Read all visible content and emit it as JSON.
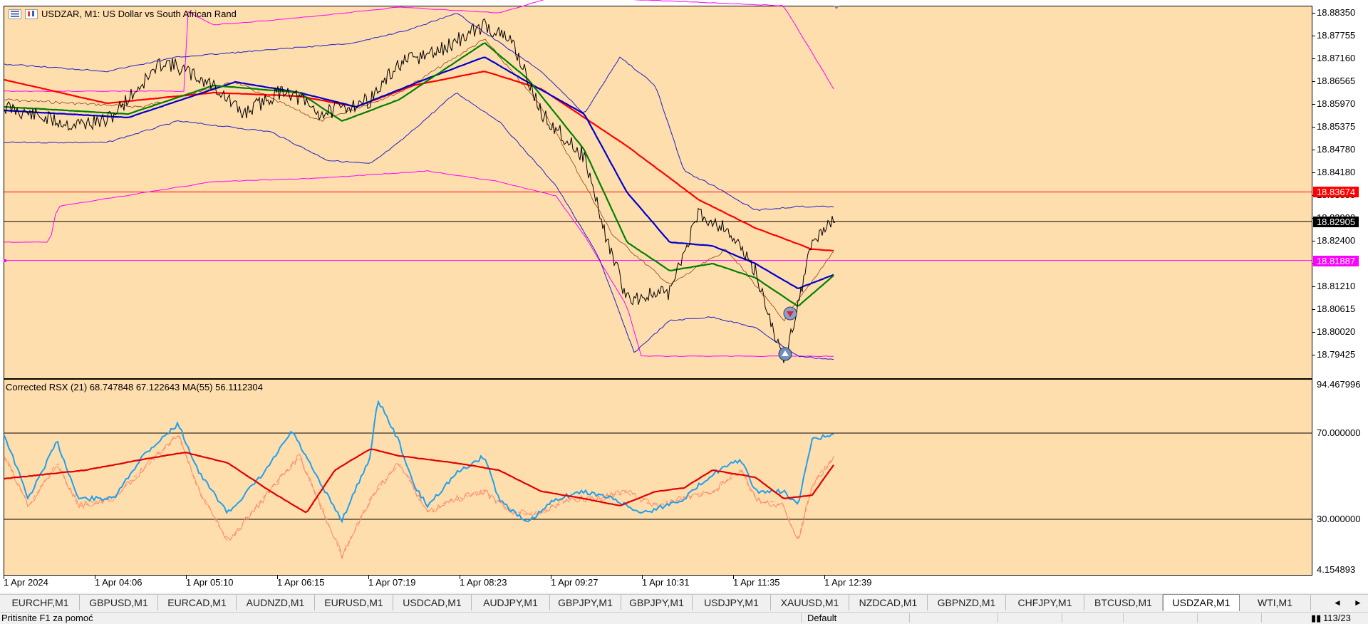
{
  "chart": {
    "symbol_title": "USDZAR, M1:  US Dollar vs South African Rand",
    "indicator_title": "Corrected RSX (21) 68.747848 67.122643 MA(55) 56.1112304"
  },
  "price_axis": {
    "labels": [
      "18.88350",
      "18.87755",
      "18.87160",
      "18.86565",
      "18.85970",
      "18.85375",
      "18.84780",
      "18.84180",
      "18.83585",
      "18.82990",
      "18.82400",
      "18.81805",
      "18.81210",
      "18.80615",
      "18.80020",
      "18.79425"
    ]
  },
  "price_tags": [
    {
      "text": "18.83674",
      "color": "#ff0000",
      "value": 18.83674
    },
    {
      "text": "18.82905",
      "color": "#000000",
      "value": 18.82905
    },
    {
      "text": "18.81887",
      "color": "#ff00ff",
      "value": 18.81887
    }
  ],
  "indicator_axis": {
    "labels": [
      "94.467996",
      "70.000000",
      "30.000000",
      "4.154893"
    ]
  },
  "time_axis": {
    "labels": [
      "1 Apr 2024",
      "1 Apr 04:06",
      "1 Apr 05:10",
      "1 Apr 06:15",
      "1 Apr 07:19",
      "1 Apr 08:23",
      "1 Apr 09:27",
      "1 Apr 10:31",
      "1 Apr 11:35",
      "1 Apr 12:39"
    ]
  },
  "tabs": [
    {
      "label": "EURCHF,M1",
      "active": false
    },
    {
      "label": "GBPUSD,M1",
      "active": false
    },
    {
      "label": "EURCAD,M1",
      "active": false
    },
    {
      "label": "AUDNZD,M1",
      "active": false
    },
    {
      "label": "EURUSD,M1",
      "active": false
    },
    {
      "label": "USDCAD,M1",
      "active": false
    },
    {
      "label": "AUDJPY,M1",
      "active": false
    },
    {
      "label": "GBPJPY,M1",
      "active": false
    },
    {
      "label": "GBPJPY,M1",
      "active": false
    },
    {
      "label": "USDJPY,M1",
      "active": false
    },
    {
      "label": "XAUUSD,M1",
      "active": false
    },
    {
      "label": "NZDCAD,M1",
      "active": false
    },
    {
      "label": "GBPNZD,M1",
      "active": false
    },
    {
      "label": "CHFJPY,M1",
      "active": false
    },
    {
      "label": "BTCUSD,M1",
      "active": false
    },
    {
      "label": "USDZAR,M1",
      "active": true
    },
    {
      "label": "WTI,M1",
      "active": false
    }
  ],
  "tab_nav": {
    "left": "◄",
    "right": "►"
  },
  "status": {
    "help_text": "Pritisnite F1 za pomoć",
    "profile": "Default",
    "traffic": "113/23"
  },
  "colors": {
    "background": "#ffdead",
    "candle_line": "#000000",
    "ma_fast": "#008000",
    "ma_slow": "#ff0000",
    "ma_mid": "#0000cd",
    "bollinger": "#1e1ec8",
    "envelope": "#ff00ff",
    "rsx_main": "#1ea0f0",
    "rsx_signal": "#ff8c69",
    "rsx_ma": "#e00000"
  }
}
